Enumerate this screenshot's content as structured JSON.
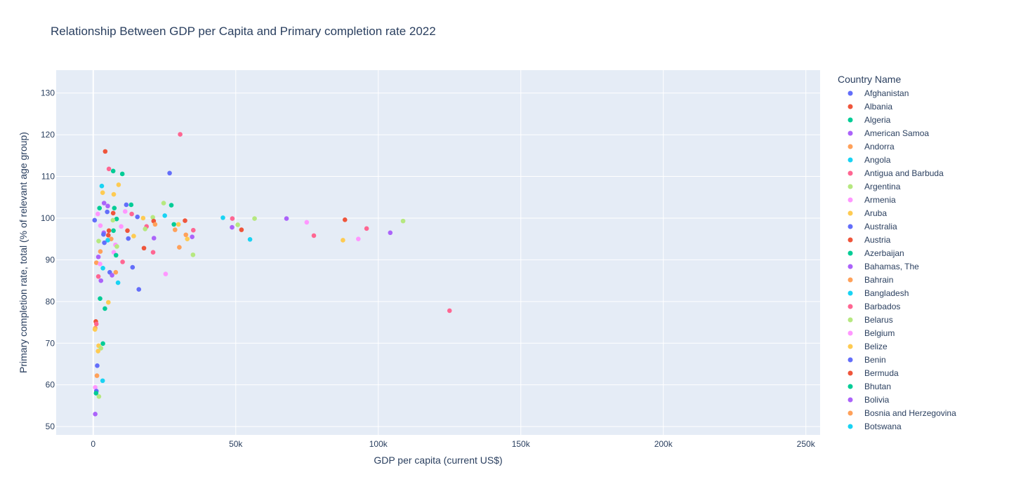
{
  "chart_data": {
    "type": "scatter",
    "title": "Relationship Between GDP per Capita and Primary completion rate 2022",
    "xlabel": "GDP per capita (current US$)",
    "ylabel": "Primary completion rate, total (% of relevant age group)",
    "xlim": [
      -13000,
      255000
    ],
    "ylim": [
      48,
      135.5
    ],
    "xticks": [
      0,
      50000,
      100000,
      150000,
      200000,
      250000
    ],
    "xtick_labels": [
      "0",
      "50k",
      "100k",
      "150k",
      "200k",
      "250k"
    ],
    "yticks": [
      50,
      60,
      70,
      80,
      90,
      100,
      110,
      120,
      130
    ],
    "ytick_labels": [
      "50",
      "60",
      "70",
      "80",
      "90",
      "100",
      "110",
      "120",
      "130"
    ],
    "grid": true,
    "legend_title": "Country Name",
    "legend_position": "right",
    "palette": [
      "#636efa",
      "#EF553B",
      "#00cc96",
      "#ab63fa",
      "#FFA15A",
      "#19d3f3",
      "#FF6692",
      "#B6E880",
      "#FF97FF",
      "#FECB52"
    ],
    "legend": [
      "Afghanistan",
      "Albania",
      "Algeria",
      "American Samoa",
      "Andorra",
      "Angola",
      "Antigua and Barbuda",
      "Argentina",
      "Armenia",
      "Aruba",
      "Australia",
      "Austria",
      "Azerbaijan",
      "Bahamas, The",
      "Bahrain",
      "Bangladesh",
      "Barbados",
      "Belarus",
      "Belgium",
      "Belize",
      "Benin",
      "Bermuda",
      "Bhutan",
      "Bolivia",
      "Bosnia and Herzegovina",
      "Botswana"
    ],
    "points": [
      {
        "x": 500,
        "y": 99.5,
        "c": 0
      },
      {
        "x": 30500,
        "y": 120.1,
        "c": 6
      },
      {
        "x": 26800,
        "y": 110.8,
        "c": 0
      },
      {
        "x": 4200,
        "y": 116.0,
        "c": 1
      },
      {
        "x": 5500,
        "y": 111.8,
        "c": 6
      },
      {
        "x": 7000,
        "y": 111.3,
        "c": 2
      },
      {
        "x": 10200,
        "y": 110.6,
        "c": 2
      },
      {
        "x": 8900,
        "y": 108.0,
        "c": 9
      },
      {
        "x": 3000,
        "y": 107.7,
        "c": 5
      },
      {
        "x": 3300,
        "y": 106.1,
        "c": 9
      },
      {
        "x": 7200,
        "y": 105.7,
        "c": 9
      },
      {
        "x": 3800,
        "y": 103.6,
        "c": 3
      },
      {
        "x": 24700,
        "y": 103.6,
        "c": 7
      },
      {
        "x": 11600,
        "y": 103.2,
        "c": 0
      },
      {
        "x": 13300,
        "y": 103.2,
        "c": 2
      },
      {
        "x": 27400,
        "y": 103.1,
        "c": 2
      },
      {
        "x": 5100,
        "y": 102.9,
        "c": 3
      },
      {
        "x": 2200,
        "y": 102.4,
        "c": 2
      },
      {
        "x": 7400,
        "y": 102.4,
        "c": 2
      },
      {
        "x": 11200,
        "y": 101.6,
        "c": 8
      },
      {
        "x": 4900,
        "y": 101.5,
        "c": 0
      },
      {
        "x": 7000,
        "y": 101.2,
        "c": 1
      },
      {
        "x": 13500,
        "y": 101.0,
        "c": 6
      },
      {
        "x": 1600,
        "y": 101.0,
        "c": 8
      },
      {
        "x": 25100,
        "y": 100.6,
        "c": 5
      },
      {
        "x": 15500,
        "y": 100.3,
        "c": 0
      },
      {
        "x": 20900,
        "y": 100.2,
        "c": 7
      },
      {
        "x": 17500,
        "y": 100.0,
        "c": 9
      },
      {
        "x": 45500,
        "y": 100.1,
        "c": 5
      },
      {
        "x": 48800,
        "y": 99.9,
        "c": 6
      },
      {
        "x": 56600,
        "y": 99.9,
        "c": 7
      },
      {
        "x": 67800,
        "y": 99.9,
        "c": 3
      },
      {
        "x": 88300,
        "y": 99.6,
        "c": 1
      },
      {
        "x": 108700,
        "y": 99.3,
        "c": 7
      },
      {
        "x": 74900,
        "y": 99.0,
        "c": 8
      },
      {
        "x": 8200,
        "y": 99.8,
        "c": 2
      },
      {
        "x": 6900,
        "y": 99.5,
        "c": 7
      },
      {
        "x": 32200,
        "y": 99.4,
        "c": 1
      },
      {
        "x": 21200,
        "y": 99.3,
        "c": 1
      },
      {
        "x": 28300,
        "y": 98.5,
        "c": 2
      },
      {
        "x": 29900,
        "y": 98.5,
        "c": 9
      },
      {
        "x": 21700,
        "y": 98.5,
        "c": 4
      },
      {
        "x": 50700,
        "y": 98.4,
        "c": 7
      },
      {
        "x": 2500,
        "y": 98.2,
        "c": 8
      },
      {
        "x": 9800,
        "y": 98.0,
        "c": 8
      },
      {
        "x": 18700,
        "y": 98.0,
        "c": 6
      },
      {
        "x": 48700,
        "y": 97.8,
        "c": 3
      },
      {
        "x": 95900,
        "y": 97.5,
        "c": 6
      },
      {
        "x": 18200,
        "y": 97.4,
        "c": 7
      },
      {
        "x": 28700,
        "y": 97.2,
        "c": 4
      },
      {
        "x": 52000,
        "y": 97.2,
        "c": 1
      },
      {
        "x": 35100,
        "y": 97.1,
        "c": 6
      },
      {
        "x": 12000,
        "y": 97.0,
        "c": 1
      },
      {
        "x": 5500,
        "y": 97.0,
        "c": 1
      },
      {
        "x": 7100,
        "y": 97.0,
        "c": 2
      },
      {
        "x": 3700,
        "y": 96.5,
        "c": 3
      },
      {
        "x": 104200,
        "y": 96.5,
        "c": 3
      },
      {
        "x": 3600,
        "y": 96.1,
        "c": 0
      },
      {
        "x": 32500,
        "y": 96.0,
        "c": 4
      },
      {
        "x": 5300,
        "y": 95.9,
        "c": 1
      },
      {
        "x": 77400,
        "y": 95.8,
        "c": 6
      },
      {
        "x": 14200,
        "y": 95.7,
        "c": 9
      },
      {
        "x": 34700,
        "y": 95.5,
        "c": 3
      },
      {
        "x": 21300,
        "y": 95.2,
        "c": 3
      },
      {
        "x": 12300,
        "y": 95.1,
        "c": 0
      },
      {
        "x": 6300,
        "y": 95.0,
        "c": 4
      },
      {
        "x": 33000,
        "y": 95.0,
        "c": 9
      },
      {
        "x": 93000,
        "y": 95.0,
        "c": 8
      },
      {
        "x": 55000,
        "y": 94.9,
        "c": 5
      },
      {
        "x": 5100,
        "y": 94.7,
        "c": 5
      },
      {
        "x": 87600,
        "y": 94.7,
        "c": 9
      },
      {
        "x": 1900,
        "y": 94.5,
        "c": 7
      },
      {
        "x": 3900,
        "y": 94.1,
        "c": 0
      },
      {
        "x": 7800,
        "y": 93.6,
        "c": 8
      },
      {
        "x": 8300,
        "y": 93.2,
        "c": 7
      },
      {
        "x": 30200,
        "y": 93.0,
        "c": 4
      },
      {
        "x": 17800,
        "y": 92.8,
        "c": 1
      },
      {
        "x": 2500,
        "y": 92.0,
        "c": 4
      },
      {
        "x": 7200,
        "y": 91.8,
        "c": 8
      },
      {
        "x": 21000,
        "y": 91.8,
        "c": 6
      },
      {
        "x": 35000,
        "y": 91.2,
        "c": 7
      },
      {
        "x": 8000,
        "y": 91.1,
        "c": 2
      },
      {
        "x": 1800,
        "y": 90.7,
        "c": 3
      },
      {
        "x": 10300,
        "y": 89.5,
        "c": 6
      },
      {
        "x": 1100,
        "y": 89.3,
        "c": 4
      },
      {
        "x": 2400,
        "y": 89.0,
        "c": 8
      },
      {
        "x": 3400,
        "y": 88.0,
        "c": 5
      },
      {
        "x": 13800,
        "y": 88.2,
        "c": 0
      },
      {
        "x": 5800,
        "y": 87.0,
        "c": 0
      },
      {
        "x": 7900,
        "y": 87.0,
        "c": 4
      },
      {
        "x": 6600,
        "y": 86.3,
        "c": 3
      },
      {
        "x": 25400,
        "y": 86.6,
        "c": 8
      },
      {
        "x": 1800,
        "y": 86.0,
        "c": 6
      },
      {
        "x": 2700,
        "y": 85.0,
        "c": 3
      },
      {
        "x": 8700,
        "y": 84.5,
        "c": 5
      },
      {
        "x": 16000,
        "y": 82.9,
        "c": 0
      },
      {
        "x": 2400,
        "y": 80.7,
        "c": 2
      },
      {
        "x": 5300,
        "y": 79.8,
        "c": 9
      },
      {
        "x": 4100,
        "y": 78.3,
        "c": 2
      },
      {
        "x": 125000,
        "y": 77.8,
        "c": 6
      },
      {
        "x": 900,
        "y": 75.2,
        "c": 1
      },
      {
        "x": 1100,
        "y": 74.6,
        "c": 6
      },
      {
        "x": 700,
        "y": 73.6,
        "c": 4
      },
      {
        "x": 600,
        "y": 73.3,
        "c": 9
      },
      {
        "x": 3400,
        "y": 69.9,
        "c": 2
      },
      {
        "x": 1900,
        "y": 69.4,
        "c": 9
      },
      {
        "x": 2700,
        "y": 68.8,
        "c": 7
      },
      {
        "x": 1700,
        "y": 68.1,
        "c": 9
      },
      {
        "x": 1400,
        "y": 64.6,
        "c": 0
      },
      {
        "x": 1300,
        "y": 62.2,
        "c": 4
      },
      {
        "x": 3300,
        "y": 61.0,
        "c": 5
      },
      {
        "x": 700,
        "y": 59.4,
        "c": 8
      },
      {
        "x": 1100,
        "y": 58.5,
        "c": 0
      },
      {
        "x": 1000,
        "y": 58.0,
        "c": 2
      },
      {
        "x": 2000,
        "y": 57.2,
        "c": 7
      },
      {
        "x": 700,
        "y": 53.0,
        "c": 3
      }
    ]
  }
}
